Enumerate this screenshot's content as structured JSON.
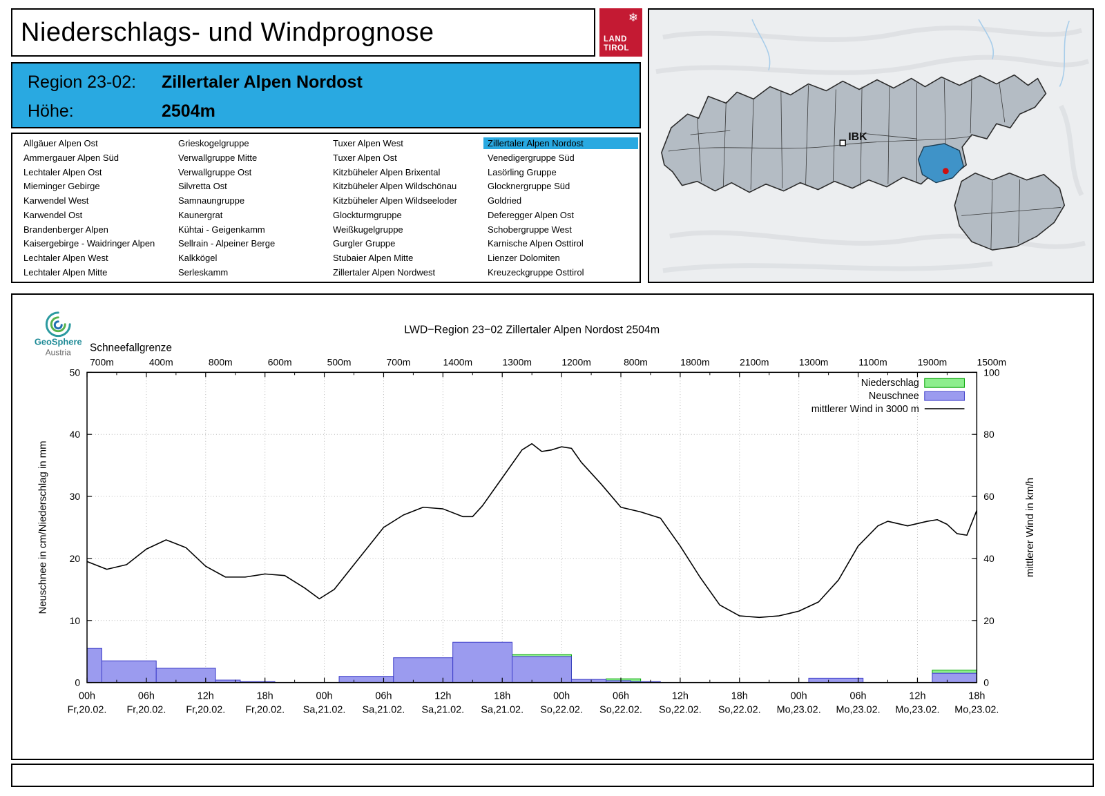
{
  "header": {
    "title": "Niederschlags- und Windprognose",
    "logo": {
      "line1": "LAND",
      "line2": "TIROL",
      "icon": "snowflake-icon",
      "brand_red": "#c41a33"
    }
  },
  "region_info": {
    "region_label": "Region 23-02:",
    "region_value": "Zillertaler Alpen Nordost",
    "hoehe_label": "Höhe:",
    "hoehe_value": "2504m",
    "highlight_color": "#29a9e1"
  },
  "region_list": {
    "selected": "Zillertaler Alpen Nordost",
    "columns": [
      [
        "Allgäuer Alpen Ost",
        "Ammergauer Alpen Süd",
        "Lechtaler Alpen Ost",
        "Mieminger Gebirge",
        "Karwendel West",
        "Karwendel Ost",
        "Brandenberger Alpen",
        "Kaisergebirge - Waidringer Alpen",
        "Lechtaler Alpen West",
        "Lechtaler Alpen Mitte"
      ],
      [
        "Grieskogelgruppe",
        "Verwallgruppe Mitte",
        "Verwallgruppe Ost",
        "Silvretta Ost",
        "Samnaungruppe",
        "Kaunergrat",
        "Kühtai - Geigenkamm",
        "Sellrain - Alpeiner Berge",
        "Kalkkögel",
        "Serleskamm"
      ],
      [
        "Tuxer Alpen West",
        "Tuxer Alpen Ost",
        "Kitzbüheler Alpen Brixental",
        "Kitzbüheler Alpen Wildschönau",
        "Kitzbüheler Alpen Wildseeloder",
        "Glockturmgruppe",
        "Weißkugelgruppe",
        "Gurgler Gruppe",
        "Stubaier Alpen Mitte",
        "Zillertaler Alpen Nordwest"
      ],
      [
        "Zillertaler Alpen Nordost",
        "Venedigergruppe Süd",
        "Lasörling Gruppe",
        "Glocknergruppe Süd",
        "Goldried",
        "Deferegger Alpen Ost",
        "Schobergruppe West",
        "Karnische Alpen Osttirol",
        "Lienzer Dolomiten",
        "Kreuzeckgruppe Osttirol"
      ]
    ]
  },
  "map": {
    "city_label": "IBK",
    "selected_region_color": "#3f93c8",
    "marker_color": "#cc1111"
  },
  "geosphere": {
    "name": "GeoSphere",
    "country": "Austria"
  },
  "chart_data": {
    "type": "bar",
    "title": "LWD−Region 23−02 Zillertaler Alpen Nordost 2504m",
    "snowline_label": "Schneefallgrenze",
    "snowline_values": [
      "700m",
      "400m",
      "800m",
      "600m",
      "500m",
      "700m",
      "1400m",
      "1300m",
      "1200m",
      "800m",
      "1800m",
      "2100m",
      "1300m",
      "1100m",
      "1900m",
      "1500m"
    ],
    "ylabel_left": "Neuschnee in cm/Niederschlag in mm",
    "ylabel_right": "mittlerer Wind in km/h",
    "ylim_left": [
      0,
      50
    ],
    "ylim_right": [
      0,
      100
    ],
    "x_hours_total": 90,
    "x_ticks": [
      {
        "time": "00h",
        "date": "Fr,20.02."
      },
      {
        "time": "06h",
        "date": "Fr,20.02."
      },
      {
        "time": "12h",
        "date": "Fr,20.02."
      },
      {
        "time": "18h",
        "date": "Fr,20.02."
      },
      {
        "time": "00h",
        "date": "Sa,21.02."
      },
      {
        "time": "06h",
        "date": "Sa,21.02."
      },
      {
        "time": "12h",
        "date": "Sa,21.02."
      },
      {
        "time": "18h",
        "date": "Sa,21.02."
      },
      {
        "time": "00h",
        "date": "So,22.02."
      },
      {
        "time": "06h",
        "date": "So,22.02."
      },
      {
        "time": "12h",
        "date": "So,22.02."
      },
      {
        "time": "18h",
        "date": "So,22.02."
      },
      {
        "time": "00h",
        "date": "Mo,23.02."
      },
      {
        "time": "06h",
        "date": "Mo,23.02."
      },
      {
        "time": "12h",
        "date": "Mo,23.02."
      },
      {
        "time": "18h",
        "date": "Mo,23.02."
      }
    ],
    "colors": {
      "niederschlag": "#8dee8d",
      "niederschlag_border": "#00a400",
      "neuschnee": "#9b9bef",
      "neuschnee_border": "#3c3cc8",
      "wind": "#000000",
      "grid": "#b5b5b5"
    },
    "legend": [
      {
        "label": "Niederschlag",
        "type": "box",
        "color": "#8dee8d",
        "border": "#00a400"
      },
      {
        "label": "Neuschnee",
        "type": "box",
        "color": "#9b9bef",
        "border": "#3c3cc8"
      },
      {
        "label": "mittlerer Wind in 3000 m",
        "type": "line",
        "color": "#000000"
      }
    ],
    "niederschlag_bars": [
      {
        "from_h": 43,
        "to_h": 49,
        "mm": 4.5
      },
      {
        "from_h": 52.5,
        "to_h": 56,
        "mm": 0.6
      },
      {
        "from_h": 85.5,
        "to_h": 90,
        "mm": 2.0
      }
    ],
    "neuschnee_bars": [
      {
        "from_h": 0,
        "to_h": 1.5,
        "cm": 5.5
      },
      {
        "from_h": 1.5,
        "to_h": 7,
        "cm": 3.5
      },
      {
        "from_h": 7,
        "to_h": 13,
        "cm": 2.3
      },
      {
        "from_h": 13,
        "to_h": 15.5,
        "cm": 0.4
      },
      {
        "from_h": 15.5,
        "to_h": 19,
        "cm": 0.15
      },
      {
        "from_h": 25.5,
        "to_h": 31,
        "cm": 1.0
      },
      {
        "from_h": 31,
        "to_h": 37,
        "cm": 4.0
      },
      {
        "from_h": 37,
        "to_h": 43,
        "cm": 6.5
      },
      {
        "from_h": 43,
        "to_h": 49,
        "cm": 4.2
      },
      {
        "from_h": 49,
        "to_h": 52.5,
        "cm": 0.5
      },
      {
        "from_h": 52.5,
        "to_h": 55,
        "cm": 0.3
      },
      {
        "from_h": 55,
        "to_h": 58,
        "cm": 0.15
      },
      {
        "from_h": 73,
        "to_h": 78.5,
        "cm": 0.7
      },
      {
        "from_h": 85.5,
        "to_h": 90,
        "cm": 1.5
      }
    ],
    "wind_line": {
      "unit": "km/h",
      "points": [
        [
          0,
          39
        ],
        [
          2,
          36.5
        ],
        [
          4,
          38
        ],
        [
          6,
          43
        ],
        [
          8,
          46
        ],
        [
          10,
          43.5
        ],
        [
          12,
          37.5
        ],
        [
          14,
          34
        ],
        [
          16,
          34
        ],
        [
          18,
          35
        ],
        [
          20,
          34.5
        ],
        [
          22,
          30.5
        ],
        [
          23.5,
          27
        ],
        [
          25,
          30
        ],
        [
          27,
          38
        ],
        [
          29,
          46
        ],
        [
          30,
          50
        ],
        [
          32,
          54
        ],
        [
          34,
          56.5
        ],
        [
          36,
          56
        ],
        [
          38,
          53.5
        ],
        [
          39,
          53.5
        ],
        [
          40,
          57
        ],
        [
          42,
          66
        ],
        [
          44,
          75
        ],
        [
          45,
          77
        ],
        [
          46,
          74.5
        ],
        [
          47,
          75
        ],
        [
          48,
          76
        ],
        [
          49,
          75.5
        ],
        [
          50,
          71
        ],
        [
          52,
          64
        ],
        [
          54,
          56.5
        ],
        [
          56,
          55
        ],
        [
          58,
          53
        ],
        [
          60,
          44
        ],
        [
          62,
          34
        ],
        [
          64,
          25
        ],
        [
          66,
          21.5
        ],
        [
          68,
          21
        ],
        [
          70,
          21.5
        ],
        [
          72,
          23
        ],
        [
          74,
          26
        ],
        [
          76,
          33
        ],
        [
          78,
          44
        ],
        [
          80,
          50.5
        ],
        [
          81,
          52
        ],
        [
          83,
          50.5
        ],
        [
          85,
          52
        ],
        [
          86,
          52.5
        ],
        [
          87,
          51
        ],
        [
          88,
          48
        ],
        [
          89,
          47.5
        ],
        [
          90,
          55.5
        ]
      ]
    }
  }
}
